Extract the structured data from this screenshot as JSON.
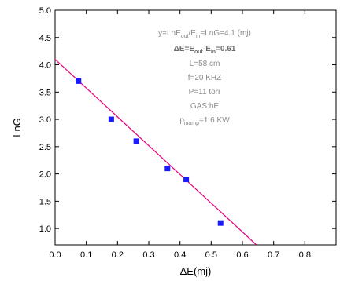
{
  "chart_data": {
    "type": "scatter",
    "xlabel": "ΔE(mj)",
    "ylabel": "LnG",
    "xlim": [
      0.0,
      0.9
    ],
    "ylim": [
      0.7,
      5.0
    ],
    "x_ticks": [
      "0.0",
      "0.1",
      "0.2",
      "0.3",
      "0.4",
      "0.5",
      "0.6",
      "0.7",
      "0.8"
    ],
    "y_ticks": [
      "1.0",
      "1.5",
      "2.0",
      "2.5",
      "3.0",
      "3.5",
      "4.0",
      "4.5",
      "5.0"
    ],
    "grid": false,
    "marker_color": "#1a1aff",
    "fit_color": "#e6007e",
    "points": [
      {
        "x": 0.075,
        "y": 3.7
      },
      {
        "x": 0.18,
        "y": 3.0
      },
      {
        "x": 0.26,
        "y": 2.6
      },
      {
        "x": 0.36,
        "y": 2.1
      },
      {
        "x": 0.42,
        "y": 1.9
      },
      {
        "x": 0.53,
        "y": 1.1
      }
    ],
    "fit_line": {
      "x": [
        0.0,
        0.645
      ],
      "y": [
        4.1,
        0.7
      ]
    },
    "annotations": {
      "line1": {
        "main": "y=LnE",
        "sub1": "out",
        "mid": "/E",
        "sub2": "in",
        "tail": "=LnG=4.1   (mj)"
      },
      "line2": {
        "prefix": "ΔE=E",
        "sub1": "out",
        "mid": "-E",
        "sub2": "in",
        "tail": "=0.61"
      },
      "line3": "L=58  cm",
      "line4": "f=20 KHZ",
      "line5": "P=11 torr",
      "line6": "GAS:hE",
      "line7": {
        "main": "p",
        "sub": "inamp",
        "tail": "=1.6   KW"
      }
    }
  }
}
